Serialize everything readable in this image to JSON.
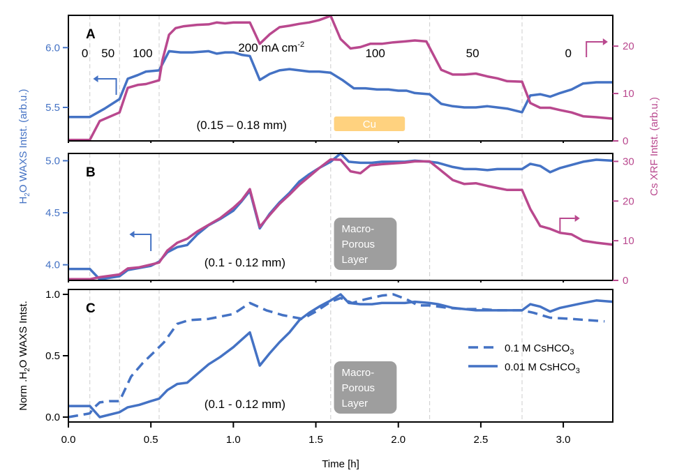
{
  "colors": {
    "waxs": "#4472c4",
    "xrf": "#b9488e",
    "cu_box": "#ffd27f",
    "macro_box": "#9e9e9e",
    "vline": "#cccccc"
  },
  "chart_data": [
    {
      "id": "A",
      "type": "line",
      "panel_label": "A",
      "xlabel": "",
      "xlim": [
        0,
        3.3
      ],
      "ylabel_left": "H2O WAXS Intst. (arb.u.)",
      "ylabel_right": "Cs XRF Intst. (arb.u.)",
      "ylim_left": [
        5.22,
        6.27
      ],
      "ylim_right": [
        0,
        26.5
      ],
      "yticks_left": [
        5.5,
        6.0
      ],
      "ytick_labels_left": [
        "5.5",
        "6.0"
      ],
      "yticks_right": [
        0,
        10,
        20
      ],
      "ytick_labels_right": [
        "0",
        "10",
        "20"
      ],
      "vlines": [
        0.13,
        0.31,
        0.55,
        1.59,
        2.19,
        2.75
      ],
      "current_labels": [
        {
          "x": 0.1,
          "text": "0"
        },
        {
          "x": 0.24,
          "text": "50"
        },
        {
          "x": 0.45,
          "text": "100"
        },
        {
          "x": 1.23,
          "text": "200 mA cm",
          "sup": "-2"
        },
        {
          "x": 1.86,
          "text": "100"
        },
        {
          "x": 2.45,
          "text": "50"
        },
        {
          "x": 3.03,
          "text": "0"
        }
      ],
      "thickness_label": "(0.15 – 0.18 mm)",
      "region_box": {
        "text": "Cu",
        "x_start": 1.61,
        "x_end": 2.04
      },
      "series": [
        {
          "name": "H2O WAXS",
          "axis": "left",
          "x": [
            0,
            0.13,
            0.22,
            0.31,
            0.36,
            0.42,
            0.47,
            0.55,
            0.61,
            0.68,
            0.75,
            0.85,
            0.9,
            0.95,
            1.0,
            1.05,
            1.1,
            1.16,
            1.22,
            1.28,
            1.34,
            1.4,
            1.46,
            1.52,
            1.59,
            1.66,
            1.73,
            1.8,
            1.87,
            1.94,
            2.0,
            2.05,
            2.1,
            2.19,
            2.26,
            2.33,
            2.4,
            2.47,
            2.54,
            2.6,
            2.66,
            2.75,
            2.8,
            2.86,
            2.92,
            2.98,
            3.05,
            3.12,
            3.2,
            3.3
          ],
          "y": [
            5.42,
            5.42,
            5.49,
            5.57,
            5.74,
            5.77,
            5.8,
            5.81,
            5.97,
            5.96,
            5.96,
            5.97,
            5.95,
            5.96,
            5.96,
            5.94,
            5.93,
            5.73,
            5.78,
            5.81,
            5.82,
            5.81,
            5.8,
            5.8,
            5.79,
            5.73,
            5.66,
            5.66,
            5.65,
            5.65,
            5.64,
            5.64,
            5.62,
            5.61,
            5.53,
            5.51,
            5.5,
            5.5,
            5.51,
            5.5,
            5.49,
            5.46,
            5.6,
            5.61,
            5.59,
            5.62,
            5.65,
            5.7,
            5.71,
            5.71
          ]
        },
        {
          "name": "Cs XRF",
          "axis": "right",
          "x": [
            0,
            0.13,
            0.19,
            0.31,
            0.36,
            0.42,
            0.47,
            0.55,
            0.57,
            0.61,
            0.65,
            0.7,
            0.78,
            0.85,
            0.9,
            0.95,
            1.0,
            1.05,
            1.1,
            1.16,
            1.22,
            1.28,
            1.34,
            1.4,
            1.46,
            1.52,
            1.59,
            1.65,
            1.71,
            1.77,
            1.83,
            1.9,
            1.97,
            2.04,
            2.1,
            2.17,
            2.26,
            2.33,
            2.4,
            2.47,
            2.54,
            2.6,
            2.66,
            2.75,
            2.8,
            2.86,
            2.92,
            2.98,
            3.05,
            3.12,
            3.2,
            3.3
          ],
          "y": [
            0.2,
            0.2,
            4.2,
            6,
            11.2,
            11.8,
            12,
            12.8,
            17,
            22.4,
            23.8,
            24.2,
            24.5,
            24.6,
            25.0,
            24.8,
            25.0,
            25.0,
            25.0,
            20.5,
            22.5,
            24,
            24.3,
            24.7,
            25.0,
            25.5,
            26.4,
            21.5,
            19.5,
            19.8,
            20.5,
            20.5,
            20.8,
            21.0,
            21.2,
            21.0,
            15,
            14.0,
            14.0,
            14.2,
            13.6,
            13.2,
            12.6,
            12.5,
            8.0,
            7.0,
            7.0,
            6.5,
            6.0,
            5.2,
            5.0,
            4.7
          ]
        }
      ]
    },
    {
      "id": "B",
      "type": "line",
      "panel_label": "B",
      "xlim": [
        0,
        3.3
      ],
      "ylim_left": [
        3.85,
        5.07
      ],
      "ylim_right": [
        0,
        32
      ],
      "yticks_left": [
        4.0,
        4.5,
        5.0
      ],
      "ytick_labels_left": [
        "4.0",
        "4.5",
        "5.0"
      ],
      "yticks_right": [
        0,
        10,
        20,
        30
      ],
      "ytick_labels_right": [
        "0",
        "10",
        "20",
        "30"
      ],
      "vlines": [
        0.13,
        0.31,
        0.55,
        1.59,
        2.19,
        2.75
      ],
      "thickness_label": "(0.1 - 0.12 mm)",
      "region_box": {
        "lines": [
          "Macro-",
          "Porous",
          "Layer"
        ],
        "x_start": 1.61,
        "x_end": 1.99
      },
      "series": [
        {
          "name": "H2O WAXS",
          "axis": "left",
          "x": [
            0,
            0.13,
            0.19,
            0.31,
            0.36,
            0.43,
            0.5,
            0.55,
            0.6,
            0.66,
            0.72,
            0.78,
            0.85,
            0.92,
            1.0,
            1.05,
            1.1,
            1.16,
            1.22,
            1.28,
            1.34,
            1.4,
            1.46,
            1.52,
            1.59,
            1.65,
            1.7,
            1.77,
            1.84,
            1.9,
            1.97,
            2.04,
            2.1,
            2.19,
            2.24,
            2.33,
            2.4,
            2.47,
            2.54,
            2.6,
            2.66,
            2.75,
            2.8,
            2.86,
            2.92,
            2.98,
            3.05,
            3.12,
            3.2,
            3.3
          ],
          "y": [
            3.96,
            3.96,
            3.86,
            3.89,
            3.95,
            3.97,
            3.99,
            4.03,
            4.12,
            4.17,
            4.19,
            4.29,
            4.38,
            4.44,
            4.52,
            4.61,
            4.71,
            4.35,
            4.49,
            4.6,
            4.69,
            4.8,
            4.87,
            4.93,
            4.99,
            5.07,
            4.99,
            4.98,
            4.98,
            4.99,
            4.99,
            4.99,
            5.0,
            4.99,
            4.98,
            4.94,
            4.92,
            4.92,
            4.91,
            4.92,
            4.92,
            4.92,
            4.97,
            4.95,
            4.89,
            4.93,
            4.96,
            4.99,
            5.01,
            5.0
          ]
        },
        {
          "name": "Cs XRF",
          "axis": "right",
          "x": [
            0,
            0.13,
            0.19,
            0.31,
            0.36,
            0.43,
            0.5,
            0.55,
            0.6,
            0.66,
            0.72,
            0.78,
            0.85,
            0.92,
            1.0,
            1.05,
            1.1,
            1.16,
            1.22,
            1.28,
            1.34,
            1.4,
            1.46,
            1.52,
            1.59,
            1.65,
            1.71,
            1.77,
            1.83,
            1.9,
            1.97,
            2.04,
            2.1,
            2.19,
            2.25,
            2.33,
            2.4,
            2.47,
            2.54,
            2.6,
            2.66,
            2.75,
            2.8,
            2.86,
            2.92,
            2.98,
            3.05,
            3.12,
            3.2,
            3.3
          ],
          "y": [
            0.3,
            0.3,
            0.8,
            1.5,
            3,
            3.3,
            4,
            4.5,
            7.5,
            9.5,
            10.5,
            12.3,
            14.0,
            15.7,
            18.3,
            20.2,
            23.0,
            13.5,
            16.5,
            19.3,
            21.6,
            24.1,
            26.2,
            28.3,
            30.5,
            30.4,
            27.5,
            27.0,
            29.0,
            29.3,
            29.5,
            29.7,
            30.0,
            30.0,
            28.0,
            25.3,
            24.3,
            24.5,
            23.8,
            23.3,
            22.8,
            22.8,
            18.0,
            13.7,
            13.0,
            12.0,
            11.6,
            10.0,
            9.5,
            9.0
          ]
        }
      ]
    },
    {
      "id": "C",
      "type": "line",
      "panel_label": "C",
      "xlabel": "Time [h]",
      "ylabel": "Norm .H2O WAXS Intst.",
      "xlim": [
        0,
        3.3
      ],
      "ylim": [
        -0.04,
        1.04
      ],
      "xticks": [
        0.0,
        0.5,
        1.0,
        1.5,
        2.0,
        2.5,
        3.0
      ],
      "xtick_labels": [
        "0.0",
        "0.5",
        "1.0",
        "1.5",
        "2.0",
        "2.5",
        "3.0"
      ],
      "yticks": [
        0.0,
        0.5,
        1.0
      ],
      "ytick_labels": [
        "0.0",
        "0.5",
        "1.0"
      ],
      "vlines": [
        0.13,
        0.31,
        0.55,
        1.59,
        2.19,
        2.75
      ],
      "thickness_label": "(0.1 - 0.12 mm)",
      "region_box": {
        "lines": [
          "Macro-",
          "Porous",
          "Layer"
        ],
        "x_start": 1.61,
        "x_end": 1.99
      },
      "legend": {
        "position": "right",
        "entries": [
          {
            "label": "0.1 M CsHCO",
            "sub": "3",
            "style": "dashed"
          },
          {
            "label": "0.01 M CsHCO",
            "sub": "3",
            "style": "solid"
          }
        ]
      },
      "series": [
        {
          "name": "0.1 M CsHCO3",
          "style": "dashed",
          "x": [
            0,
            0.13,
            0.15,
            0.19,
            0.25,
            0.31,
            0.38,
            0.45,
            0.52,
            0.58,
            0.66,
            0.73,
            0.85,
            1.0,
            1.1,
            1.2,
            1.3,
            1.42,
            1.5,
            1.59,
            1.65,
            1.72,
            1.8,
            1.9,
            1.97,
            2.05,
            2.12,
            2.19,
            2.3,
            2.4,
            2.5,
            2.6,
            2.75,
            2.82,
            2.92,
            3.05,
            3.15,
            3.25
          ],
          "y": [
            0.0,
            0.03,
            0.07,
            0.12,
            0.13,
            0.13,
            0.33,
            0.44,
            0.53,
            0.61,
            0.76,
            0.79,
            0.8,
            0.84,
            0.93,
            0.87,
            0.83,
            0.8,
            0.86,
            0.94,
            0.97,
            0.93,
            0.96,
            0.99,
            1.0,
            0.96,
            0.91,
            0.91,
            0.89,
            0.88,
            0.88,
            0.87,
            0.87,
            0.85,
            0.81,
            0.8,
            0.79,
            0.78
          ]
        },
        {
          "name": "0.01 M CsHCO3",
          "style": "solid",
          "x": [
            0,
            0.13,
            0.19,
            0.31,
            0.36,
            0.43,
            0.5,
            0.55,
            0.6,
            0.66,
            0.72,
            0.78,
            0.85,
            0.92,
            1.0,
            1.05,
            1.1,
            1.16,
            1.22,
            1.28,
            1.34,
            1.4,
            1.46,
            1.52,
            1.59,
            1.65,
            1.7,
            1.77,
            1.84,
            1.9,
            1.97,
            2.04,
            2.1,
            2.19,
            2.24,
            2.33,
            2.4,
            2.47,
            2.54,
            2.6,
            2.66,
            2.75,
            2.8,
            2.86,
            2.92,
            2.98,
            3.05,
            3.12,
            3.2,
            3.3
          ],
          "y": [
            0.09,
            0.09,
            0.0,
            0.04,
            0.08,
            0.1,
            0.13,
            0.15,
            0.22,
            0.27,
            0.28,
            0.35,
            0.43,
            0.49,
            0.57,
            0.63,
            0.69,
            0.42,
            0.52,
            0.61,
            0.69,
            0.79,
            0.85,
            0.9,
            0.95,
            1.0,
            0.93,
            0.92,
            0.92,
            0.93,
            0.93,
            0.93,
            0.94,
            0.93,
            0.92,
            0.89,
            0.88,
            0.87,
            0.87,
            0.87,
            0.87,
            0.87,
            0.92,
            0.9,
            0.86,
            0.89,
            0.91,
            0.93,
            0.95,
            0.94
          ]
        }
      ]
    }
  ],
  "axis_titles": {
    "left_top": "H",
    "left_top_sub": "2",
    "left_top_rest": "O WAXS Intst. (arb.u.)",
    "right_top": "Cs XRF Intst. (arb.u.)",
    "left_bottom_pre": "Norm .H",
    "left_bottom_sub": "2",
    "left_bottom_rest": "O WAXS Intst.",
    "x": "Time [h]"
  }
}
